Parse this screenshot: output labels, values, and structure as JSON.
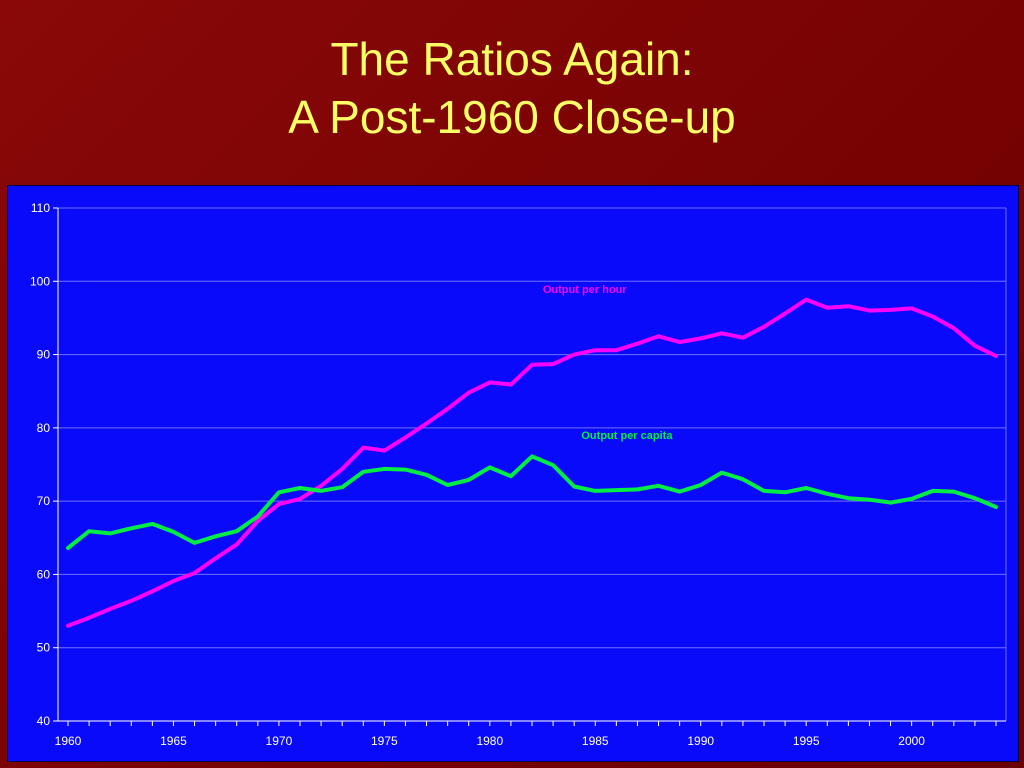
{
  "slide": {
    "title_line1": "The Ratios Again:",
    "title_line2": "A Post-1960 Close-up"
  },
  "colors": {
    "background": "#7a0303",
    "title": "#ffff66",
    "plot_area": "#0a0afa",
    "output_per_hour": "#ff00ff",
    "output_per_capita": "#00ee44"
  },
  "chart_data": {
    "type": "line",
    "title": "",
    "xlabel": "",
    "ylabel": "",
    "ylim": [
      40,
      110
    ],
    "xlim": [
      1960,
      2004
    ],
    "y_ticks": [
      "40",
      "50",
      "60",
      "70",
      "80",
      "90",
      "100",
      "110"
    ],
    "x_ticks": [
      "1960",
      "1965",
      "1970",
      "1975",
      "1980",
      "1985",
      "1990",
      "1995",
      "2000"
    ],
    "grid": "horizontal",
    "x": [
      1960,
      1961,
      1962,
      1963,
      1964,
      1965,
      1966,
      1967,
      1968,
      1969,
      1970,
      1971,
      1972,
      1973,
      1974,
      1975,
      1976,
      1977,
      1978,
      1979,
      1980,
      1981,
      1982,
      1983,
      1984,
      1985,
      1986,
      1987,
      1988,
      1989,
      1990,
      1991,
      1992,
      1993,
      1994,
      1995,
      1996,
      1997,
      1998,
      1999,
      2000,
      2001,
      2002,
      2003,
      2004
    ],
    "series": [
      {
        "name": "Output per hour",
        "values": [
          53.0,
          54.1,
          55.3,
          56.4,
          57.7,
          59.1,
          60.2,
          62.2,
          64.1,
          67.3,
          69.6,
          70.3,
          72.1,
          74.4,
          77.3,
          76.9,
          78.7,
          80.6,
          82.6,
          84.8,
          86.2,
          85.9,
          88.6,
          88.7,
          90.0,
          90.6,
          90.6,
          91.5,
          92.5,
          91.7,
          92.2,
          92.9,
          92.3,
          93.8,
          95.6,
          97.5,
          96.4,
          96.6,
          96.0,
          96.1,
          96.3,
          95.2,
          93.6,
          91.2,
          89.8
        ]
      },
      {
        "name": "Output per capita",
        "values": [
          63.6,
          65.9,
          65.6,
          66.3,
          66.9,
          65.8,
          64.3,
          65.2,
          65.9,
          67.9,
          71.2,
          71.8,
          71.4,
          71.9,
          74.0,
          74.4,
          74.3,
          73.6,
          72.2,
          72.9,
          74.6,
          73.4,
          76.1,
          74.9,
          72.0,
          71.4,
          71.5,
          71.6,
          72.1,
          71.3,
          72.2,
          73.9,
          73.0,
          71.4,
          71.2,
          71.8,
          71.0,
          70.4,
          70.2,
          69.8,
          70.3,
          71.4,
          71.3,
          70.4,
          69.2
        ]
      }
    ]
  }
}
